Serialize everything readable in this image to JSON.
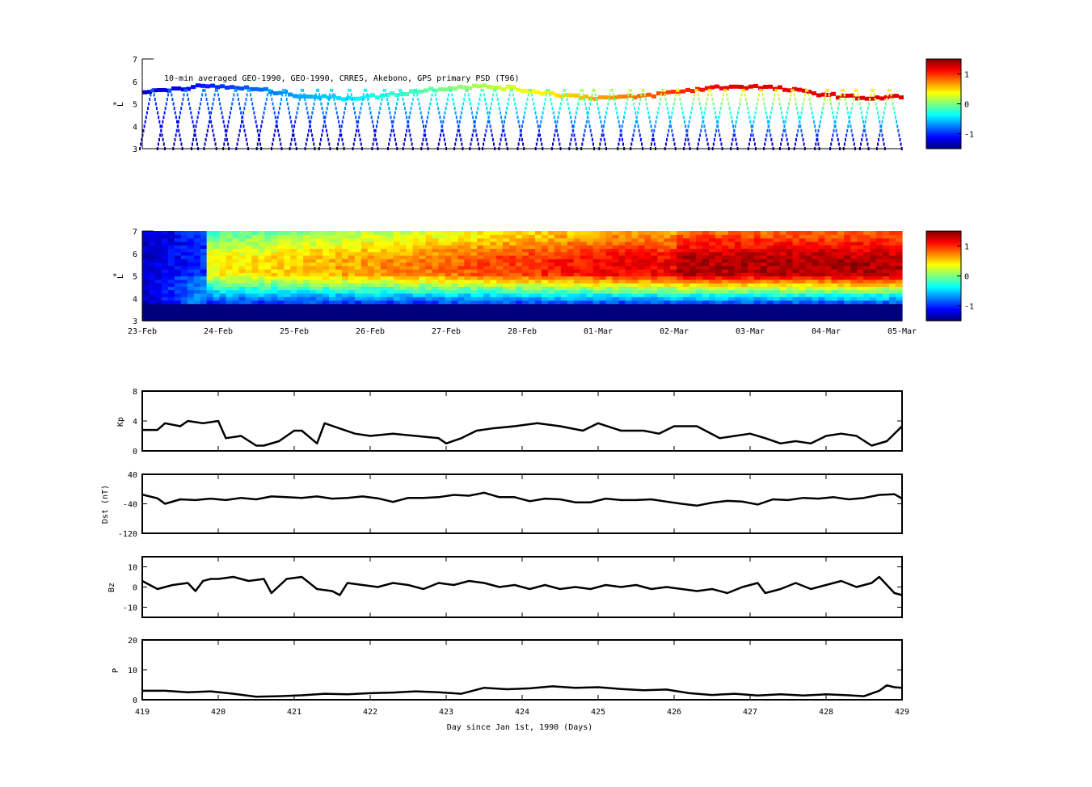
{
  "colors": {
    "jet": [
      "#00007f",
      "#0000ff",
      "#007fff",
      "#00ffff",
      "#7fff7f",
      "#ffff00",
      "#ff7f00",
      "#ff0000",
      "#7f0000"
    ],
    "line": "#000000",
    "highlight": "#1a237e"
  },
  "chart_data": [
    {
      "type": "heatmap",
      "title": "10-min averaged GEO-1990, GEO-1990, CRRES, Akebono, GPS  primary PSD (T96)",
      "xlabel": "",
      "ylabel": "L*",
      "ylim": [
        3,
        7
      ],
      "yticks": [
        "3",
        "4",
        "5",
        "6",
        "7"
      ],
      "colorbar": {
        "range": [
          -1.5,
          1.5
        ],
        "ticks": [
          "1",
          "0",
          "-1"
        ]
      },
      "xticks": [],
      "trace_hint": "satellite tracks (sparse observations): GEO at L*~5.2-5.9 and elliptical orbit sweeps from L*~3 to ~6, colour rising from about -1 (blue) to +1 (red) over the interval"
    },
    {
      "type": "heatmap",
      "title": "",
      "xlabel": "",
      "ylabel": "L*",
      "ylim": [
        3,
        7
      ],
      "yticks": [
        "3",
        "4",
        "5",
        "6",
        "7"
      ],
      "colorbar": {
        "range": [
          -1.5,
          1.5
        ],
        "ticks": [
          "1",
          "0",
          "-1"
        ]
      },
      "xticks": [
        "23-Feb",
        "24-Feb",
        "25-Feb",
        "26-Feb",
        "27-Feb",
        "28-Feb",
        "01-Mar",
        "02-Mar",
        "03-Mar",
        "04-Mar",
        "05-Mar"
      ],
      "trace_hint": "reanalysis PSD: dark blue below L*~3.7, cyan near 4, yellow/orange 5-7, strongest red L*~4.5-6 after 02-Mar"
    },
    {
      "type": "line",
      "ylabel": "Kp",
      "ylim": [
        0,
        8
      ],
      "yticks": [
        "0",
        "4",
        "8"
      ],
      "x": [
        419.0,
        419.2,
        419.3,
        419.5,
        419.6,
        419.8,
        420.0,
        420.1,
        420.3,
        420.5,
        420.6,
        420.8,
        421.0,
        421.1,
        421.3,
        421.4,
        421.6,
        421.8,
        422.0,
        422.3,
        422.6,
        422.9,
        423.0,
        423.2,
        423.4,
        423.6,
        423.9,
        424.2,
        424.5,
        424.8,
        425.0,
        425.3,
        425.6,
        425.8,
        426.0,
        426.3,
        426.6,
        426.8,
        427.0,
        427.2,
        427.4,
        427.6,
        427.8,
        428.0,
        428.2,
        428.4,
        428.6,
        428.8,
        429.0
      ],
      "series": [
        {
          "values": [
            2.8,
            2.8,
            3.7,
            3.3,
            4.0,
            3.7,
            4.0,
            1.7,
            2.0,
            0.7,
            0.7,
            1.3,
            2.7,
            2.7,
            1.0,
            3.7,
            3.0,
            2.3,
            2.0,
            2.3,
            2.0,
            1.7,
            1.0,
            1.7,
            2.7,
            3.0,
            3.3,
            3.7,
            3.3,
            2.7,
            3.7,
            2.7,
            2.7,
            2.3,
            3.3,
            3.3,
            1.7,
            2.0,
            2.3,
            1.7,
            1.0,
            1.3,
            1.0,
            2.0,
            2.3,
            2.0,
            0.7,
            1.3,
            3.3
          ]
        }
      ]
    },
    {
      "type": "line",
      "ylabel": "Dst (nT)",
      "ylim": [
        -120,
        40
      ],
      "yticks": [
        "40",
        "-40",
        "-120"
      ],
      "x": [
        419.0,
        419.2,
        419.3,
        419.5,
        419.7,
        419.9,
        420.1,
        420.3,
        420.5,
        420.7,
        420.9,
        421.1,
        421.3,
        421.5,
        421.7,
        421.9,
        422.1,
        422.3,
        422.5,
        422.7,
        422.9,
        423.1,
        423.3,
        423.5,
        423.7,
        423.9,
        424.1,
        424.3,
        424.5,
        424.7,
        424.9,
        425.1,
        425.3,
        425.5,
        425.7,
        425.9,
        426.1,
        426.3,
        426.5,
        426.7,
        426.9,
        427.1,
        427.3,
        427.5,
        427.7,
        427.9,
        428.1,
        428.3,
        428.5,
        428.7,
        428.9,
        429.0
      ],
      "series": [
        {
          "values": [
            -15,
            -25,
            -40,
            -28,
            -30,
            -26,
            -30,
            -24,
            -28,
            -20,
            -22,
            -24,
            -20,
            -26,
            -24,
            -20,
            -25,
            -35,
            -24,
            -24,
            -22,
            -16,
            -18,
            -10,
            -22,
            -22,
            -33,
            -26,
            -28,
            -36,
            -36,
            -26,
            -30,
            -30,
            -28,
            -34,
            -40,
            -45,
            -37,
            -32,
            -34,
            -42,
            -28,
            -30,
            -24,
            -26,
            -22,
            -28,
            -24,
            -16,
            -14,
            -26
          ]
        }
      ]
    },
    {
      "type": "line",
      "ylabel": "Bz",
      "ylim": [
        -15,
        15
      ],
      "yticks": [
        "10",
        "0",
        "-10"
      ],
      "x": [
        419.0,
        419.2,
        419.4,
        419.6,
        419.7,
        419.8,
        419.9,
        420.0,
        420.2,
        420.4,
        420.6,
        420.7,
        420.9,
        421.1,
        421.3,
        421.5,
        421.6,
        421.7,
        421.9,
        422.1,
        422.3,
        422.5,
        422.7,
        422.9,
        423.1,
        423.3,
        423.5,
        423.7,
        423.9,
        424.1,
        424.3,
        424.5,
        424.7,
        424.9,
        425.1,
        425.3,
        425.5,
        425.7,
        425.9,
        426.1,
        426.3,
        426.5,
        426.7,
        426.9,
        427.1,
        427.2,
        427.4,
        427.6,
        427.8,
        428.0,
        428.2,
        428.4,
        428.6,
        428.7,
        428.8,
        428.9,
        429.0
      ],
      "series": [
        {
          "values": [
            3,
            -1,
            1,
            2,
            -2,
            3,
            4,
            4,
            5,
            3,
            4,
            -3,
            4,
            5,
            -1,
            -2,
            -4,
            2,
            1,
            0,
            2,
            1,
            -1,
            2,
            1,
            3,
            2,
            0,
            1,
            -1,
            1,
            -1,
            0,
            -1,
            1,
            0,
            1,
            -1,
            0,
            -1,
            -2,
            -1,
            -3,
            0,
            2,
            -3,
            -1,
            2,
            -1,
            1,
            3,
            0,
            2,
            5,
            1,
            -3,
            -4
          ]
        }
      ]
    },
    {
      "type": "line",
      "ylabel": "P",
      "ylim": [
        0,
        20
      ],
      "yticks": [
        "20",
        "10",
        "0"
      ],
      "x": [
        419.0,
        419.3,
        419.6,
        419.9,
        420.2,
        420.5,
        420.8,
        421.1,
        421.4,
        421.7,
        422.0,
        422.3,
        422.6,
        422.9,
        423.2,
        423.5,
        423.8,
        424.1,
        424.4,
        424.7,
        425.0,
        425.3,
        425.6,
        425.9,
        426.2,
        426.5,
        426.8,
        427.1,
        427.4,
        427.7,
        428.0,
        428.3,
        428.5,
        428.7,
        428.8,
        428.9,
        429.0
      ],
      "series": [
        {
          "values": [
            3,
            3,
            2.5,
            2.8,
            2,
            1,
            1.2,
            1.5,
            2.0,
            1.8,
            2.2,
            2.4,
            2.8,
            2.5,
            2.0,
            4.0,
            3.5,
            3.8,
            4.5,
            4.0,
            4.2,
            3.6,
            3.2,
            3.4,
            2.2,
            1.6,
            2.0,
            1.4,
            1.8,
            1.4,
            1.8,
            1.5,
            1.2,
            3.0,
            4.8,
            4.2,
            4.0
          ]
        }
      ]
    }
  ],
  "bottom_axis": {
    "xlabel": "Day since Jan 1st, 1990 (Days)",
    "xticks": [
      "419",
      "420",
      "421",
      "422",
      "423",
      "424",
      "425",
      "426",
      "427",
      "428",
      "429"
    ]
  }
}
